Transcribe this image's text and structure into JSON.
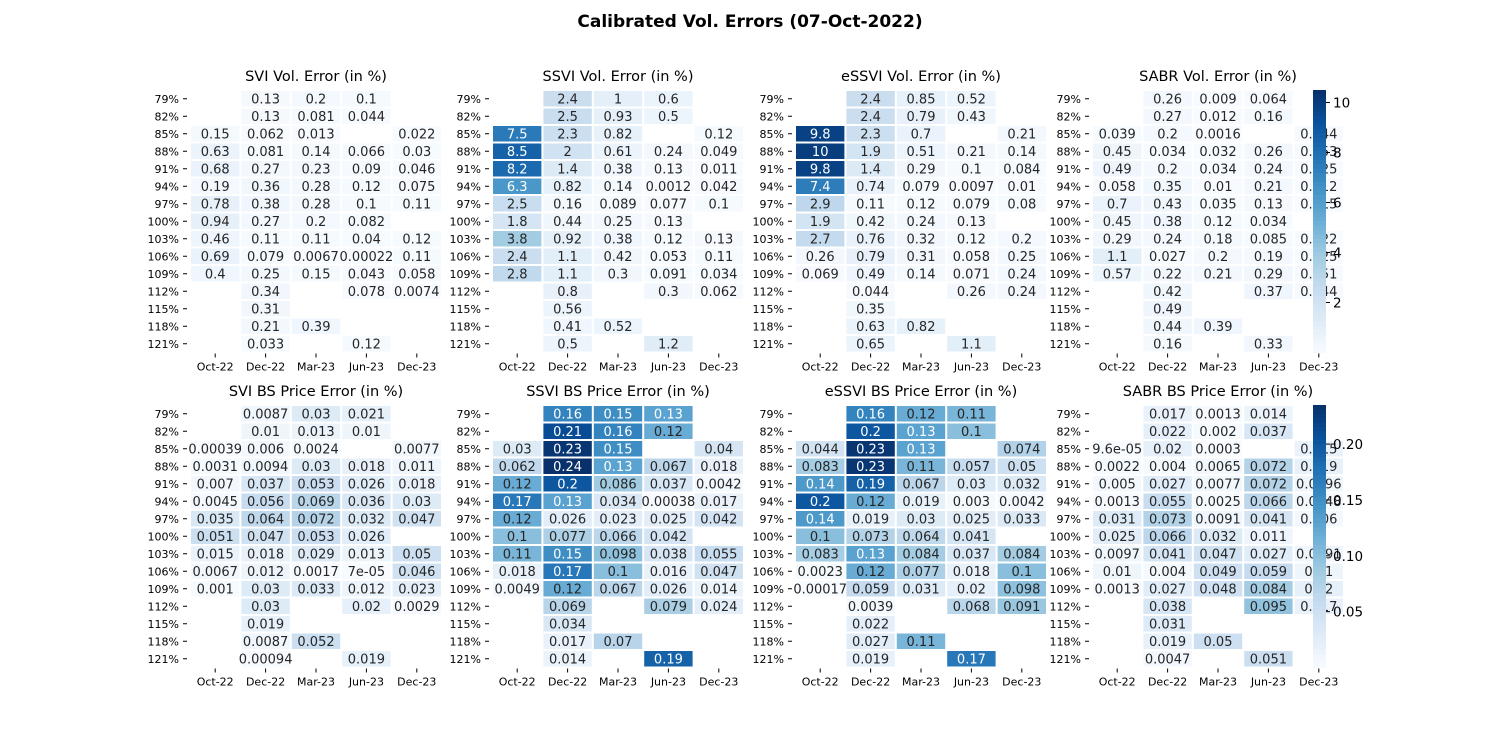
{
  "figure": {
    "title": "Calibrated Vol. Errors (07-Oct-2022)"
  },
  "chart_data": [
    {
      "type": "heatmap",
      "title": "SVI Vol. Error (in %)",
      "x": [
        "Oct-22",
        "Dec-22",
        "Mar-23",
        "Jun-23",
        "Dec-23"
      ],
      "y": [
        "79%",
        "82%",
        "85%",
        "88%",
        "91%",
        "94%",
        "97%",
        "100%",
        "103%",
        "106%",
        "109%",
        "112%",
        "115%",
        "118%",
        "121%"
      ],
      "values": [
        [
          null,
          "0.13",
          "0.2",
          "0.1",
          null
        ],
        [
          null,
          "0.13",
          "0.081",
          "0.044",
          null
        ],
        [
          "0.15",
          "0.062",
          "0.013",
          null,
          "0.022"
        ],
        [
          "0.63",
          "0.081",
          "0.14",
          "0.066",
          "0.03"
        ],
        [
          "0.68",
          "0.27",
          "0.23",
          "0.09",
          "0.046"
        ],
        [
          "0.19",
          "0.36",
          "0.28",
          "0.12",
          "0.075"
        ],
        [
          "0.78",
          "0.38",
          "0.28",
          "0.1",
          "0.11"
        ],
        [
          "0.94",
          "0.27",
          "0.2",
          "0.082",
          null
        ],
        [
          "0.46",
          "0.11",
          "0.11",
          "0.04",
          "0.12"
        ],
        [
          "0.69",
          "0.079",
          "0.0067",
          "0.00022",
          "0.11"
        ],
        [
          "0.4",
          "0.25",
          "0.15",
          "0.043",
          "0.058"
        ],
        [
          null,
          "0.34",
          null,
          "0.078",
          "0.0074"
        ],
        [
          null,
          "0.31",
          null,
          null,
          null
        ],
        [
          null,
          "0.21",
          "0.39",
          null,
          null
        ],
        [
          null,
          "0.033",
          null,
          "0.12",
          null
        ]
      ]
    },
    {
      "type": "heatmap",
      "title": "SSVI Vol. Error (in %)",
      "x": [
        "Oct-22",
        "Dec-22",
        "Mar-23",
        "Jun-23",
        "Dec-23"
      ],
      "y": [
        "79%",
        "82%",
        "85%",
        "88%",
        "91%",
        "94%",
        "97%",
        "100%",
        "103%",
        "106%",
        "109%",
        "112%",
        "115%",
        "118%",
        "121%"
      ],
      "values": [
        [
          null,
          "2.4",
          "1",
          "0.6",
          null
        ],
        [
          null,
          "2.5",
          "0.93",
          "0.5",
          null
        ],
        [
          "7.5",
          "2.3",
          "0.82",
          null,
          "0.12"
        ],
        [
          "8.5",
          "2",
          "0.61",
          "0.24",
          "0.049"
        ],
        [
          "8.2",
          "1.4",
          "0.38",
          "0.13",
          "0.011"
        ],
        [
          "6.3",
          "0.82",
          "0.14",
          "0.0012",
          "0.042"
        ],
        [
          "2.5",
          "0.16",
          "0.089",
          "0.077",
          "0.1"
        ],
        [
          "1.8",
          "0.44",
          "0.25",
          "0.13",
          null
        ],
        [
          "3.8",
          "0.92",
          "0.38",
          "0.12",
          "0.13"
        ],
        [
          "2.4",
          "1.1",
          "0.42",
          "0.053",
          "0.11"
        ],
        [
          "2.8",
          "1.1",
          "0.3",
          "0.091",
          "0.034"
        ],
        [
          null,
          "0.8",
          null,
          "0.3",
          "0.062"
        ],
        [
          null,
          "0.56",
          null,
          null,
          null
        ],
        [
          null,
          "0.41",
          "0.52",
          null,
          null
        ],
        [
          null,
          "0.5",
          null,
          "1.2",
          null
        ]
      ]
    },
    {
      "type": "heatmap",
      "title": "eSSVI Vol. Error (in %)",
      "x": [
        "Oct-22",
        "Dec-22",
        "Mar-23",
        "Jun-23",
        "Dec-23"
      ],
      "y": [
        "79%",
        "82%",
        "85%",
        "88%",
        "91%",
        "94%",
        "97%",
        "100%",
        "103%",
        "106%",
        "109%",
        "112%",
        "115%",
        "118%",
        "121%"
      ],
      "values": [
        [
          null,
          "2.4",
          "0.85",
          "0.52",
          null
        ],
        [
          null,
          "2.4",
          "0.79",
          "0.43",
          null
        ],
        [
          "9.8",
          "2.3",
          "0.7",
          null,
          "0.21"
        ],
        [
          "10",
          "1.9",
          "0.51",
          "0.21",
          "0.14"
        ],
        [
          "9.8",
          "1.4",
          "0.29",
          "0.1",
          "0.084"
        ],
        [
          "7.4",
          "0.74",
          "0.079",
          "0.0097",
          "0.01"
        ],
        [
          "2.9",
          "0.11",
          "0.12",
          "0.079",
          "0.08"
        ],
        [
          "1.9",
          "0.42",
          "0.24",
          "0.13",
          null
        ],
        [
          "2.7",
          "0.76",
          "0.32",
          "0.12",
          "0.2"
        ],
        [
          "0.26",
          "0.79",
          "0.31",
          "0.058",
          "0.25"
        ],
        [
          "0.069",
          "0.49",
          "0.14",
          "0.071",
          "0.24"
        ],
        [
          null,
          "0.044",
          null,
          "0.26",
          "0.24"
        ],
        [
          null,
          "0.35",
          null,
          null,
          null
        ],
        [
          null,
          "0.63",
          "0.82",
          null,
          null
        ],
        [
          null,
          "0.65",
          null,
          "1.1",
          null
        ]
      ]
    },
    {
      "type": "heatmap",
      "title": "SABR Vol. Error (in %)",
      "x": [
        "Oct-22",
        "Dec-22",
        "Mar-23",
        "Jun-23",
        "Dec-23"
      ],
      "y": [
        "79%",
        "82%",
        "85%",
        "88%",
        "91%",
        "94%",
        "97%",
        "100%",
        "103%",
        "106%",
        "109%",
        "112%",
        "115%",
        "118%",
        "121%"
      ],
      "values": [
        [
          null,
          "0.26",
          "0.009",
          "0.064",
          null
        ],
        [
          null,
          "0.27",
          "0.012",
          "0.16",
          null
        ],
        [
          "0.039",
          "0.2",
          "0.0016",
          null,
          "0.044"
        ],
        [
          "0.45",
          "0.034",
          "0.032",
          "0.26",
          "0.053"
        ],
        [
          "0.49",
          "0.2",
          "0.034",
          "0.24",
          "0.025"
        ],
        [
          "0.058",
          "0.35",
          "0.01",
          "0.21",
          "0.012"
        ],
        [
          "0.7",
          "0.43",
          "0.035",
          "0.13",
          "0.015"
        ],
        [
          "0.45",
          "0.38",
          "0.12",
          "0.034",
          null
        ],
        [
          "0.29",
          "0.24",
          "0.18",
          "0.085",
          "0.022"
        ],
        [
          "1.1",
          "0.027",
          "0.2",
          "0.19",
          "0.025"
        ],
        [
          "0.57",
          "0.22",
          "0.21",
          "0.29",
          "0.051"
        ],
        [
          null,
          "0.42",
          null,
          "0.37",
          "0.044"
        ],
        [
          null,
          "0.49",
          null,
          null,
          null
        ],
        [
          null,
          "0.44",
          "0.39",
          null,
          null
        ],
        [
          null,
          "0.16",
          null,
          "0.33",
          null
        ]
      ],
      "colorbar": {
        "range": [
          0,
          10.5
        ],
        "ticks": [
          "2",
          "4",
          "6",
          "8",
          "10"
        ]
      }
    },
    {
      "type": "heatmap",
      "title": "SVI BS Price Error (in %)",
      "x": [
        "Oct-22",
        "Dec-22",
        "Mar-23",
        "Jun-23",
        "Dec-23"
      ],
      "y": [
        "79%",
        "82%",
        "85%",
        "88%",
        "91%",
        "94%",
        "97%",
        "100%",
        "103%",
        "106%",
        "109%",
        "112%",
        "115%",
        "118%",
        "121%"
      ],
      "values": [
        [
          null,
          "0.0087",
          "0.03",
          "0.021",
          null
        ],
        [
          null,
          "0.01",
          "0.013",
          "0.01",
          null
        ],
        [
          "0.00039",
          "0.006",
          "0.0024",
          null,
          "0.0077"
        ],
        [
          "0.0031",
          "0.0094",
          "0.03",
          "0.018",
          "0.011"
        ],
        [
          "0.007",
          "0.037",
          "0.053",
          "0.026",
          "0.018"
        ],
        [
          "0.0045",
          "0.056",
          "0.069",
          "0.036",
          "0.03"
        ],
        [
          "0.035",
          "0.064",
          "0.072",
          "0.032",
          "0.047"
        ],
        [
          "0.051",
          "0.047",
          "0.053",
          "0.026",
          null
        ],
        [
          "0.015",
          "0.018",
          "0.029",
          "0.013",
          "0.05"
        ],
        [
          "0.0067",
          "0.012",
          "0.0017",
          "7e-05",
          "0.046"
        ],
        [
          "0.001",
          "0.03",
          "0.033",
          "0.012",
          "0.023"
        ],
        [
          null,
          "0.03",
          null,
          "0.02",
          "0.0029"
        ],
        [
          null,
          "0.019",
          null,
          null,
          null
        ],
        [
          null,
          "0.0087",
          "0.052",
          null,
          null
        ],
        [
          null,
          "0.00094",
          null,
          "0.019",
          null
        ]
      ]
    },
    {
      "type": "heatmap",
      "title": "SSVI BS Price Error (in %)",
      "x": [
        "Oct-22",
        "Dec-22",
        "Mar-23",
        "Jun-23",
        "Dec-23"
      ],
      "y": [
        "79%",
        "82%",
        "85%",
        "88%",
        "91%",
        "94%",
        "97%",
        "100%",
        "103%",
        "106%",
        "109%",
        "112%",
        "115%",
        "118%",
        "121%"
      ],
      "values": [
        [
          null,
          "0.16",
          "0.15",
          "0.13",
          null
        ],
        [
          null,
          "0.21",
          "0.16",
          "0.12",
          null
        ],
        [
          "0.03",
          "0.23",
          "0.15",
          null,
          "0.04"
        ],
        [
          "0.062",
          "0.24",
          "0.13",
          "0.067",
          "0.018"
        ],
        [
          "0.12",
          "0.2",
          "0.086",
          "0.037",
          "0.0042"
        ],
        [
          "0.17",
          "0.13",
          "0.034",
          "0.00038",
          "0.017"
        ],
        [
          "0.12",
          "0.026",
          "0.023",
          "0.025",
          "0.042"
        ],
        [
          "0.1",
          "0.077",
          "0.066",
          "0.042",
          null
        ],
        [
          "0.11",
          "0.15",
          "0.098",
          "0.038",
          "0.055"
        ],
        [
          "0.018",
          "0.17",
          "0.1",
          "0.016",
          "0.047"
        ],
        [
          "0.0049",
          "0.12",
          "0.067",
          "0.026",
          "0.014"
        ],
        [
          null,
          "0.069",
          null,
          "0.079",
          "0.024"
        ],
        [
          null,
          "0.034",
          null,
          null,
          null
        ],
        [
          null,
          "0.017",
          "0.07",
          null,
          null
        ],
        [
          null,
          "0.014",
          null,
          "0.19",
          null
        ]
      ]
    },
    {
      "type": "heatmap",
      "title": "eSSVI BS Price Error (in %)",
      "x": [
        "Oct-22",
        "Dec-22",
        "Mar-23",
        "Jun-23",
        "Dec-23"
      ],
      "y": [
        "79%",
        "82%",
        "85%",
        "88%",
        "91%",
        "94%",
        "97%",
        "100%",
        "103%",
        "106%",
        "109%",
        "112%",
        "115%",
        "118%",
        "121%"
      ],
      "values": [
        [
          null,
          "0.16",
          "0.12",
          "0.11",
          null
        ],
        [
          null,
          "0.2",
          "0.13",
          "0.1",
          null
        ],
        [
          "0.044",
          "0.23",
          "0.13",
          null,
          "0.074"
        ],
        [
          "0.083",
          "0.23",
          "0.11",
          "0.057",
          "0.05"
        ],
        [
          "0.14",
          "0.19",
          "0.067",
          "0.03",
          "0.032"
        ],
        [
          "0.2",
          "0.12",
          "0.019",
          "0.003",
          "0.0042"
        ],
        [
          "0.14",
          "0.019",
          "0.03",
          "0.025",
          "0.033"
        ],
        [
          "0.1",
          "0.073",
          "0.064",
          "0.041",
          null
        ],
        [
          "0.083",
          "0.13",
          "0.084",
          "0.037",
          "0.084"
        ],
        [
          "0.0023",
          "0.12",
          "0.077",
          "0.018",
          "0.1"
        ],
        [
          "0.00017",
          "0.059",
          "0.031",
          "0.02",
          "0.098"
        ],
        [
          null,
          "0.0039",
          null,
          "0.068",
          "0.091"
        ],
        [
          null,
          "0.022",
          null,
          null,
          null
        ],
        [
          null,
          "0.027",
          "0.11",
          null,
          null
        ],
        [
          null,
          "0.019",
          null,
          "0.17",
          null
        ]
      ]
    },
    {
      "type": "heatmap",
      "title": "SABR BS Price Error (in %)",
      "x": [
        "Oct-22",
        "Dec-22",
        "Mar-23",
        "Jun-23",
        "Dec-23"
      ],
      "y": [
        "79%",
        "82%",
        "85%",
        "88%",
        "91%",
        "94%",
        "97%",
        "100%",
        "103%",
        "106%",
        "109%",
        "112%",
        "115%",
        "118%",
        "121%"
      ],
      "values": [
        [
          null,
          "0.017",
          "0.0013",
          "0.014",
          null
        ],
        [
          null,
          "0.022",
          "0.002",
          "0.037",
          null
        ],
        [
          "9.6e-05",
          "0.02",
          "0.0003",
          null,
          "0.015"
        ],
        [
          "0.0022",
          "0.004",
          "0.0065",
          "0.072",
          "0.019"
        ],
        [
          "0.005",
          "0.027",
          "0.0077",
          "0.072",
          "0.0096"
        ],
        [
          "0.0013",
          "0.055",
          "0.0025",
          "0.066",
          "0.0048"
        ],
        [
          "0.031",
          "0.073",
          "0.0091",
          "0.041",
          "0.006"
        ],
        [
          "0.025",
          "0.066",
          "0.032",
          "0.011",
          null
        ],
        [
          "0.0097",
          "0.041",
          "0.047",
          "0.027",
          "0.0091"
        ],
        [
          "0.01",
          "0.004",
          "0.049",
          "0.059",
          "0.01"
        ],
        [
          "0.0013",
          "0.027",
          "0.048",
          "0.084",
          "0.02"
        ],
        [
          null,
          "0.038",
          null,
          "0.095",
          "0.017"
        ],
        [
          null,
          "0.031",
          null,
          null,
          null
        ],
        [
          null,
          "0.019",
          "0.05",
          null,
          null
        ],
        [
          null,
          "0.0047",
          null,
          "0.051",
          null
        ]
      ],
      "colorbar": {
        "range": [
          0,
          0.235
        ],
        "ticks": [
          "0.05",
          "0.10",
          "0.15",
          "0.20"
        ]
      }
    }
  ]
}
